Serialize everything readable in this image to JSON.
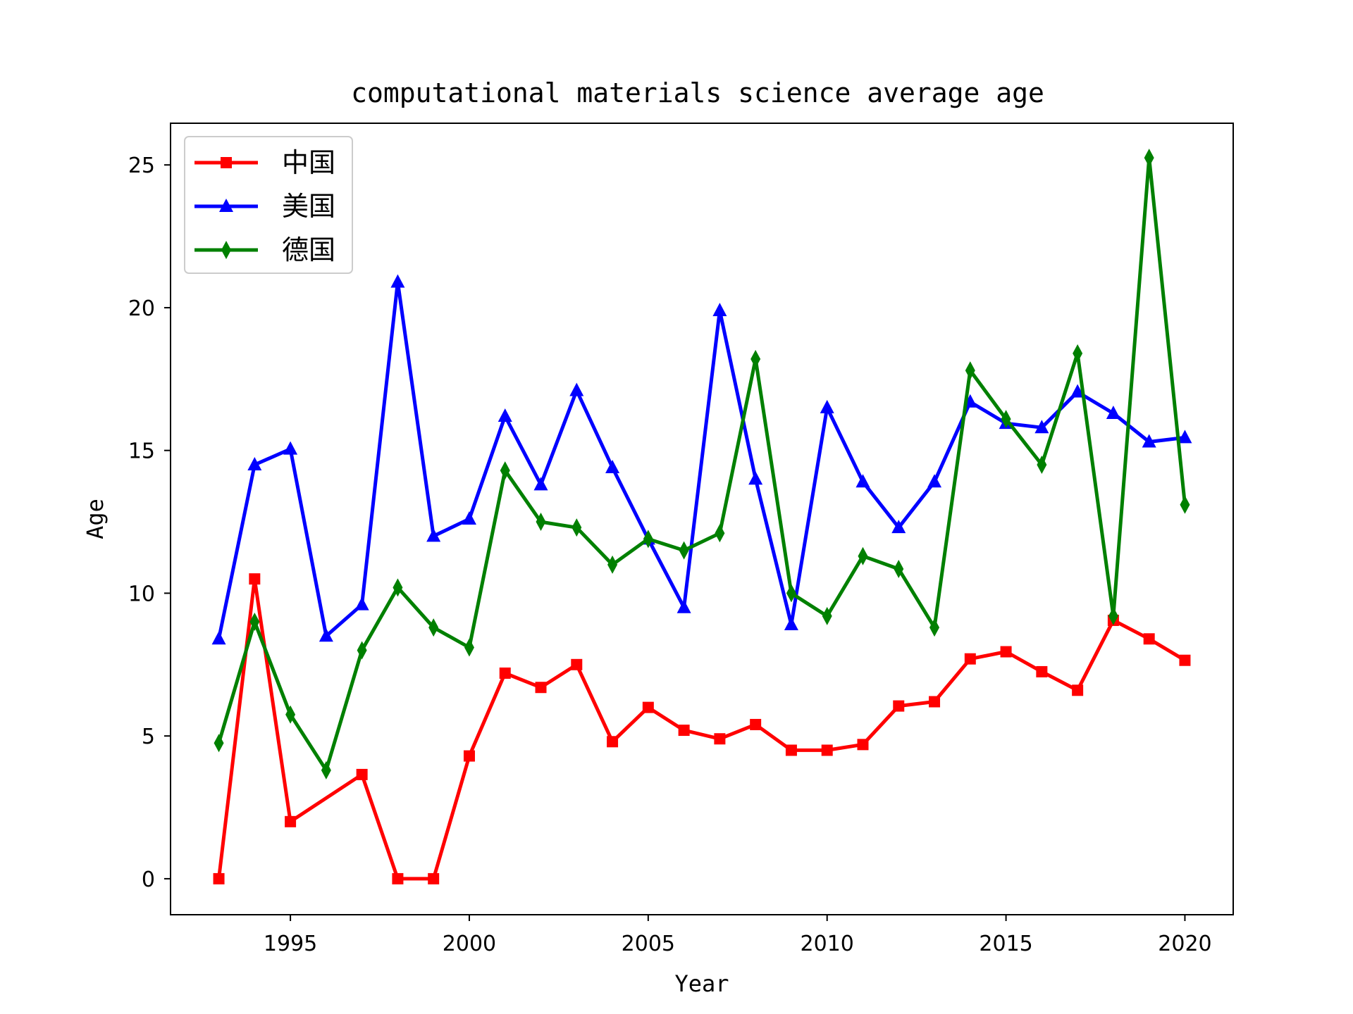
{
  "chart_data": {
    "type": "line",
    "title": "computational materials science average age",
    "xlabel": "Year",
    "ylabel": "Age",
    "xlim": [
      1991.65,
      2021.35
    ],
    "ylim": [
      -1.26,
      26.46
    ],
    "xticks": [
      1995,
      2000,
      2005,
      2010,
      2015,
      2020
    ],
    "yticks": [
      0,
      5,
      10,
      15,
      20,
      25
    ],
    "legend_position": "upper-left",
    "grid": false,
    "series": [
      {
        "name": "中国",
        "color": "#ff0000",
        "marker": "square",
        "points": [
          [
            1993,
            0.0
          ],
          [
            1994,
            10.5
          ],
          [
            1995,
            2.0
          ],
          [
            1997,
            3.65
          ],
          [
            1998,
            0.0
          ],
          [
            1999,
            0.0
          ],
          [
            2000,
            4.3
          ],
          [
            2001,
            7.2
          ],
          [
            2002,
            6.7
          ],
          [
            2003,
            7.5
          ],
          [
            2004,
            4.8
          ],
          [
            2005,
            6.0
          ],
          [
            2006,
            5.2
          ],
          [
            2007,
            4.9
          ],
          [
            2008,
            5.4
          ],
          [
            2009,
            4.5
          ],
          [
            2010,
            4.5
          ],
          [
            2011,
            4.7
          ],
          [
            2012,
            6.05
          ],
          [
            2013,
            6.2
          ],
          [
            2014,
            7.7
          ],
          [
            2015,
            7.95
          ],
          [
            2016,
            7.25
          ],
          [
            2017,
            6.6
          ],
          [
            2018,
            9.05
          ],
          [
            2019,
            8.4
          ],
          [
            2020,
            7.65
          ]
        ]
      },
      {
        "name": "美国",
        "color": "#0000ff",
        "marker": "triangle",
        "points": [
          [
            1993,
            8.4
          ],
          [
            1994,
            14.5
          ],
          [
            1995,
            15.05
          ],
          [
            1996,
            8.5
          ],
          [
            1997,
            9.6
          ],
          [
            1998,
            20.9
          ],
          [
            1999,
            12.0
          ],
          [
            2000,
            12.6
          ],
          [
            2001,
            16.2
          ],
          [
            2002,
            13.8
          ],
          [
            2003,
            17.1
          ],
          [
            2004,
            14.4
          ],
          [
            2005,
            11.9
          ],
          [
            2006,
            9.5
          ],
          [
            2007,
            19.9
          ],
          [
            2008,
            14.0
          ],
          [
            2009,
            8.9
          ],
          [
            2010,
            16.5
          ],
          [
            2011,
            13.9
          ],
          [
            2012,
            12.3
          ],
          [
            2013,
            13.9
          ],
          [
            2014,
            16.7
          ],
          [
            2015,
            15.95
          ],
          [
            2016,
            15.8
          ],
          [
            2017,
            17.05
          ],
          [
            2018,
            16.3
          ],
          [
            2019,
            15.3
          ],
          [
            2020,
            15.45
          ]
        ]
      },
      {
        "name": "德国",
        "color": "#008000",
        "marker": "diamond",
        "points": [
          [
            1993,
            4.75
          ],
          [
            1994,
            9.0
          ],
          [
            1995,
            5.75
          ],
          [
            1996,
            3.8
          ],
          [
            1997,
            8.0
          ],
          [
            1998,
            10.2
          ],
          [
            1999,
            8.8
          ],
          [
            2000,
            8.1
          ],
          [
            2001,
            14.3
          ],
          [
            2002,
            12.5
          ],
          [
            2003,
            12.3
          ],
          [
            2004,
            11.0
          ],
          [
            2005,
            11.9
          ],
          [
            2006,
            11.5
          ],
          [
            2007,
            12.1
          ],
          [
            2008,
            18.2
          ],
          [
            2009,
            10.0
          ],
          [
            2010,
            9.2
          ],
          [
            2011,
            11.3
          ],
          [
            2012,
            10.85
          ],
          [
            2013,
            8.8
          ],
          [
            2014,
            17.8
          ],
          [
            2015,
            16.1
          ],
          [
            2016,
            14.5
          ],
          [
            2017,
            18.4
          ],
          [
            2018,
            9.2
          ],
          [
            2019,
            25.25
          ],
          [
            2020,
            13.1
          ]
        ]
      }
    ]
  }
}
